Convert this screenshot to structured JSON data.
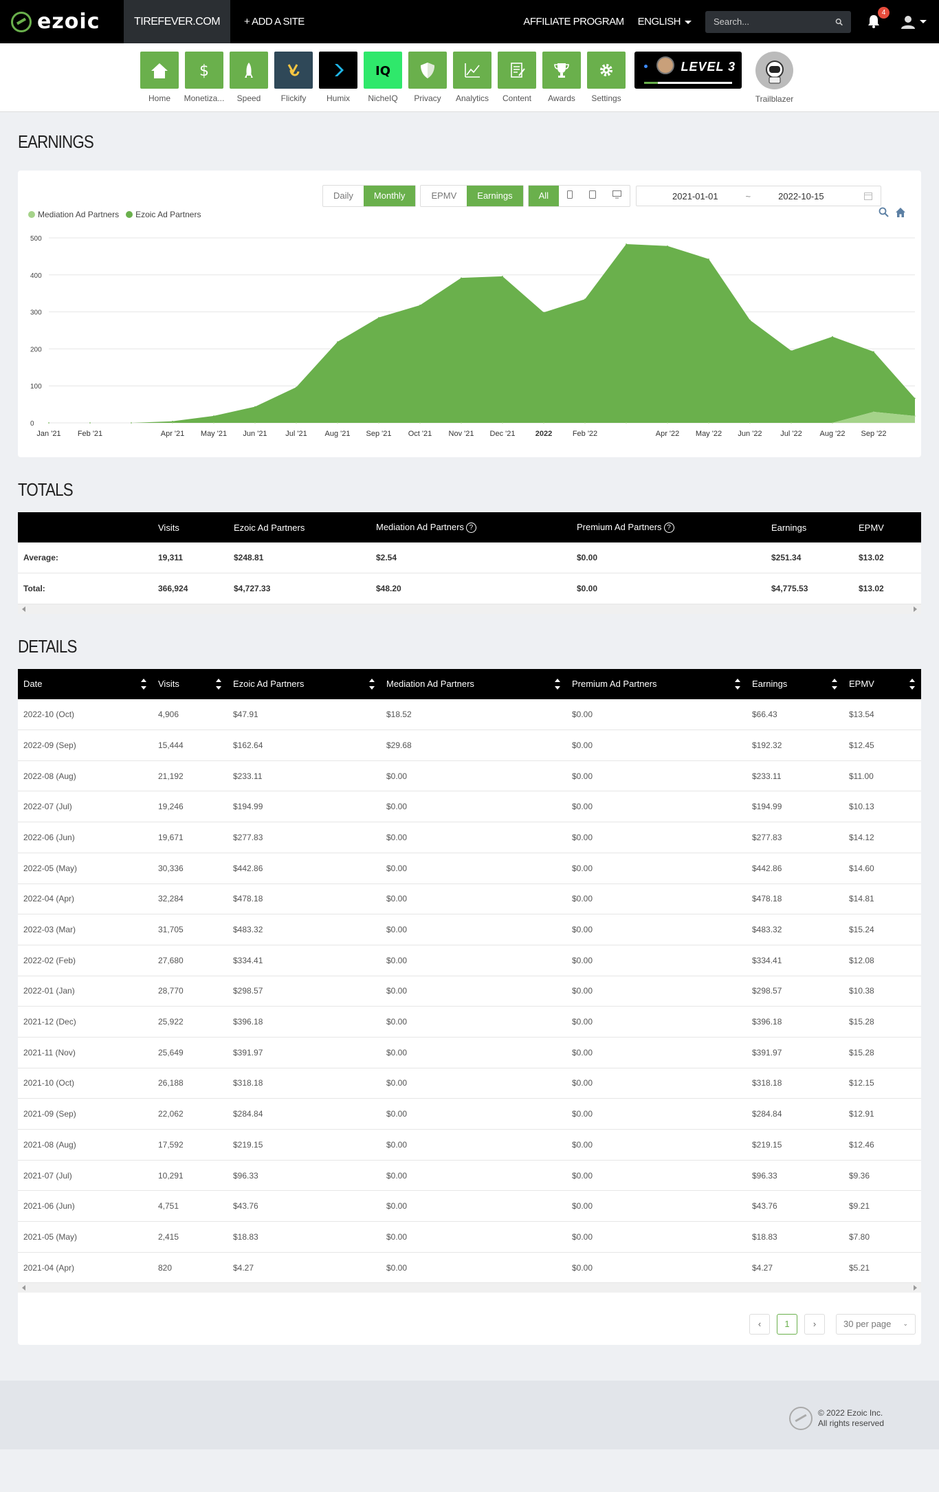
{
  "nav": {
    "brand": "ezoic",
    "site": "TIREFEVER.COM",
    "add_site": "+ ADD A SITE",
    "affiliate": "AFFILIATE PROGRAM",
    "language": "ENGLISH",
    "search_placeholder": "Search...",
    "notification_count": "4"
  },
  "apps": [
    {
      "label": "Home",
      "icon": "home-icon",
      "color": "#6ab04c"
    },
    {
      "label": "Monetiza...",
      "icon": "dollar-icon",
      "color": "#6ab04c"
    },
    {
      "label": "Speed",
      "icon": "rocket-icon",
      "color": "#6ab04c"
    },
    {
      "label": "Flickify",
      "icon": "flickify-icon",
      "color": "#2f4858"
    },
    {
      "label": "Humix",
      "icon": "humix-icon",
      "color": "#000000"
    },
    {
      "label": "NicheIQ",
      "icon": "iq-icon",
      "color": "#2fe86b"
    },
    {
      "label": "Privacy",
      "icon": "shield-icon",
      "color": "#6ab04c"
    },
    {
      "label": "Analytics",
      "icon": "analytics-icon",
      "color": "#6ab04c"
    },
    {
      "label": "Content",
      "icon": "content-icon",
      "color": "#6ab04c"
    },
    {
      "label": "Awards",
      "icon": "trophy-icon",
      "color": "#6ab04c"
    },
    {
      "label": "Settings",
      "icon": "gear-icon",
      "color": "#6ab04c"
    }
  ],
  "level": {
    "text": "LEVEL 3"
  },
  "trailblazer": {
    "label": "Trailblazer"
  },
  "earnings": {
    "title": "EARNINGS",
    "controls": {
      "daily": "Daily",
      "monthly": "Monthly",
      "epmv": "EPMV",
      "earnings": "Earnings",
      "all": "All",
      "date_from": "2021-01-01",
      "date_sep": "~",
      "date_to": "2022-10-15"
    }
  },
  "chart_data": {
    "type": "area",
    "stacked": true,
    "x": [
      "2021-01",
      "2021-02",
      "2021-03",
      "2021-04",
      "2021-05",
      "2021-06",
      "2021-07",
      "2021-08",
      "2021-09",
      "2021-10",
      "2021-11",
      "2021-12",
      "2022-01",
      "2022-02",
      "2022-03",
      "2022-04",
      "2022-05",
      "2022-06",
      "2022-07",
      "2022-08",
      "2022-09",
      "2022-10"
    ],
    "x_tick_labels": [
      "Jan '21",
      "Feb '21",
      "Apr '21",
      "May '21",
      "Jun '21",
      "Jul '21",
      "Aug '21",
      "Sep '21",
      "Oct '21",
      "Nov '21",
      "Dec '21",
      "2022",
      "Feb '22",
      "Apr '22",
      "May '22",
      "Jun '22",
      "Jul '22",
      "Aug '22",
      "Sep '22"
    ],
    "series": [
      {
        "name": "Mediation Ad Partners",
        "color": "#a5d38a",
        "values": [
          0,
          0,
          0,
          0,
          0,
          0,
          0,
          0,
          0,
          0,
          0,
          0,
          0,
          0,
          0,
          0,
          0,
          0,
          0,
          0,
          29.68,
          18.52
        ]
      },
      {
        "name": "Ezoic Ad Partners",
        "color": "#6ab04c",
        "values": [
          0,
          0,
          0,
          4.27,
          18.83,
          43.76,
          96.33,
          219.15,
          284.84,
          318.18,
          391.97,
          396.18,
          298.57,
          334.41,
          483.32,
          478.18,
          442.86,
          277.83,
          194.99,
          233.11,
          162.64,
          47.91
        ]
      }
    ],
    "ylim": [
      0,
      500
    ],
    "yticks": [
      0,
      100,
      200,
      300,
      400,
      500
    ],
    "legend": "top-left",
    "grid": true
  },
  "totals": {
    "title": "TOTALS",
    "headers": [
      "",
      "Visits",
      "Ezoic Ad Partners",
      "Mediation Ad Partners",
      "Premium Ad Partners",
      "Earnings",
      "EPMV"
    ],
    "rows": [
      [
        "Average:",
        "19,311",
        "$248.81",
        "$2.54",
        "$0.00",
        "$251.34",
        "$13.02"
      ],
      [
        "Total:",
        "366,924",
        "$4,727.33",
        "$48.20",
        "$0.00",
        "$4,775.53",
        "$13.02"
      ]
    ]
  },
  "details": {
    "title": "DETAILS",
    "headers": [
      "Date",
      "Visits",
      "Ezoic Ad Partners",
      "Mediation Ad Partners",
      "Premium Ad Partners",
      "Earnings",
      "EPMV"
    ],
    "rows": [
      [
        "2022-10 (Oct)",
        "4,906",
        "$47.91",
        "$18.52",
        "$0.00",
        "$66.43",
        "$13.54"
      ],
      [
        "2022-09 (Sep)",
        "15,444",
        "$162.64",
        "$29.68",
        "$0.00",
        "$192.32",
        "$12.45"
      ],
      [
        "2022-08 (Aug)",
        "21,192",
        "$233.11",
        "$0.00",
        "$0.00",
        "$233.11",
        "$11.00"
      ],
      [
        "2022-07 (Jul)",
        "19,246",
        "$194.99",
        "$0.00",
        "$0.00",
        "$194.99",
        "$10.13"
      ],
      [
        "2022-06 (Jun)",
        "19,671",
        "$277.83",
        "$0.00",
        "$0.00",
        "$277.83",
        "$14.12"
      ],
      [
        "2022-05 (May)",
        "30,336",
        "$442.86",
        "$0.00",
        "$0.00",
        "$442.86",
        "$14.60"
      ],
      [
        "2022-04 (Apr)",
        "32,284",
        "$478.18",
        "$0.00",
        "$0.00",
        "$478.18",
        "$14.81"
      ],
      [
        "2022-03 (Mar)",
        "31,705",
        "$483.32",
        "$0.00",
        "$0.00",
        "$483.32",
        "$15.24"
      ],
      [
        "2022-02 (Feb)",
        "27,680",
        "$334.41",
        "$0.00",
        "$0.00",
        "$334.41",
        "$12.08"
      ],
      [
        "2022-01 (Jan)",
        "28,770",
        "$298.57",
        "$0.00",
        "$0.00",
        "$298.57",
        "$10.38"
      ],
      [
        "2021-12 (Dec)",
        "25,922",
        "$396.18",
        "$0.00",
        "$0.00",
        "$396.18",
        "$15.28"
      ],
      [
        "2021-11 (Nov)",
        "25,649",
        "$391.97",
        "$0.00",
        "$0.00",
        "$391.97",
        "$15.28"
      ],
      [
        "2021-10 (Oct)",
        "26,188",
        "$318.18",
        "$0.00",
        "$0.00",
        "$318.18",
        "$12.15"
      ],
      [
        "2021-09 (Sep)",
        "22,062",
        "$284.84",
        "$0.00",
        "$0.00",
        "$284.84",
        "$12.91"
      ],
      [
        "2021-08 (Aug)",
        "17,592",
        "$219.15",
        "$0.00",
        "$0.00",
        "$219.15",
        "$12.46"
      ],
      [
        "2021-07 (Jul)",
        "10,291",
        "$96.33",
        "$0.00",
        "$0.00",
        "$96.33",
        "$9.36"
      ],
      [
        "2021-06 (Jun)",
        "4,751",
        "$43.76",
        "$0.00",
        "$0.00",
        "$43.76",
        "$9.21"
      ],
      [
        "2021-05 (May)",
        "2,415",
        "$18.83",
        "$0.00",
        "$0.00",
        "$18.83",
        "$7.80"
      ],
      [
        "2021-04 (Apr)",
        "820",
        "$4.27",
        "$0.00",
        "$0.00",
        "$4.27",
        "$5.21"
      ]
    ],
    "page": "1",
    "per_page": "30 per page"
  },
  "footer": {
    "line1": "© 2022 Ezoic Inc.",
    "line2": "All rights reserved"
  }
}
